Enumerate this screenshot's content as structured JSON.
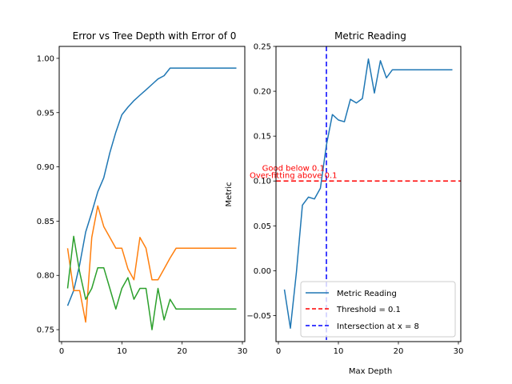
{
  "chart_data": [
    {
      "type": "line",
      "title": "Error vs Tree Depth with Error of 0",
      "xlabel": "",
      "ylabel": "",
      "xlim": [
        -0.4,
        30.4
      ],
      "ylim": [
        0.739,
        1.011
      ],
      "xticks": [
        0,
        10,
        20,
        30
      ],
      "yticks": [
        0.75,
        0.8,
        0.85,
        0.9,
        0.95,
        1.0
      ],
      "ytick_labels": [
        "0.75",
        "0.80",
        "0.85",
        "0.90",
        "0.95",
        "1.00"
      ],
      "grid": false,
      "x": [
        1,
        2,
        3,
        4,
        5,
        6,
        7,
        8,
        9,
        10,
        11,
        12,
        13,
        14,
        15,
        16,
        17,
        18,
        19,
        20,
        21,
        22,
        23,
        24,
        25,
        26,
        27,
        28,
        29
      ],
      "series": [
        {
          "color": "#1f77b4",
          "values": [
            0.772,
            0.786,
            0.81,
            0.84,
            0.858,
            0.877,
            0.89,
            0.913,
            0.932,
            0.948,
            0.955,
            0.961,
            0.966,
            0.971,
            0.976,
            0.981,
            0.984,
            0.991,
            0.991,
            0.991,
            0.991,
            0.991,
            0.991,
            0.991,
            0.991,
            0.991,
            0.991,
            0.991,
            0.991
          ]
        },
        {
          "color": "#ff7f0e",
          "values": [
            0.825,
            0.786,
            0.786,
            0.757,
            0.835,
            0.864,
            0.845,
            0.835,
            0.825,
            0.825,
            0.806,
            0.796,
            0.835,
            0.825,
            0.796,
            0.796,
            0.806,
            0.816,
            0.825,
            0.825,
            0.825,
            0.825,
            0.825,
            0.825,
            0.825,
            0.825,
            0.825,
            0.825,
            0.825
          ]
        },
        {
          "color": "#2ca02c",
          "values": [
            0.788,
            0.836,
            0.803,
            0.778,
            0.788,
            0.807,
            0.807,
            0.788,
            0.769,
            0.788,
            0.798,
            0.778,
            0.788,
            0.788,
            0.75,
            0.788,
            0.759,
            0.778,
            0.769,
            0.769,
            0.769,
            0.769,
            0.769,
            0.769,
            0.769,
            0.769,
            0.769,
            0.769,
            0.769
          ]
        }
      ]
    },
    {
      "type": "line",
      "title": "Metric Reading",
      "xlabel": "Max Depth",
      "ylabel": "Metric",
      "xlim": [
        -0.4,
        30.4
      ],
      "ylim": [
        -0.079,
        0.25
      ],
      "xticks": [
        0,
        10,
        20,
        30
      ],
      "yticks": [
        -0.05,
        0.0,
        0.05,
        0.1,
        0.15,
        0.2,
        0.25
      ],
      "ytick_labels": [
        "−0.05",
        "0.00",
        "0.05",
        "0.10",
        "0.15",
        "0.20",
        "0.25"
      ],
      "grid": false,
      "legend_position": "lower-right",
      "x": [
        1,
        2,
        3,
        4,
        5,
        6,
        7,
        8,
        9,
        10,
        11,
        12,
        13,
        14,
        15,
        16,
        17,
        18,
        19,
        20,
        21,
        22,
        23,
        24,
        25,
        26,
        27,
        28,
        29
      ],
      "series": [
        {
          "name": "Metric Reading",
          "color": "#1f77b4",
          "values": [
            -0.021,
            -0.064,
            -0.002,
            0.073,
            0.082,
            0.08,
            0.092,
            0.14,
            0.174,
            0.168,
            0.166,
            0.191,
            0.187,
            0.192,
            0.236,
            0.198,
            0.234,
            0.215,
            0.224,
            0.224,
            0.224,
            0.224,
            0.224,
            0.224,
            0.224,
            0.224,
            0.224,
            0.224,
            0.224
          ]
        }
      ],
      "hlines": [
        {
          "name": "Threshold = 0.1",
          "y": 0.1,
          "color": "#ff0000",
          "style": "dashed"
        }
      ],
      "vlines": [
        {
          "name": "Intersection at x = 8",
          "x": 8,
          "color": "#0000ff",
          "style": "dashed"
        }
      ],
      "annotations": [
        {
          "text": "Over-fitting above 0.1",
          "x": 2.5,
          "y": 0.1035,
          "color": "#ff0000"
        },
        {
          "text": "Good below 0.1",
          "x": 2.5,
          "y": 0.1115,
          "color": "#ff0000"
        }
      ]
    }
  ]
}
